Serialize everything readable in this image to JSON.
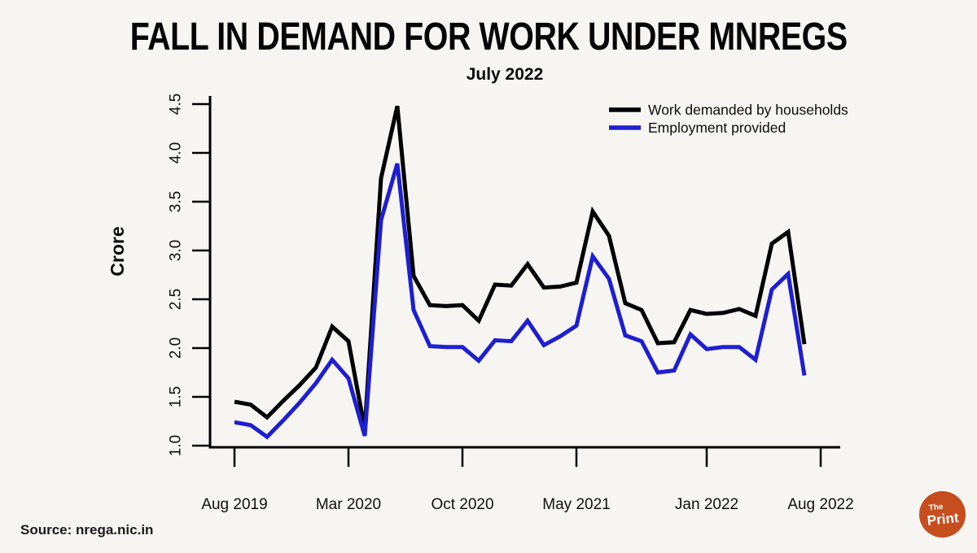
{
  "header": {
    "title": "FALL IN DEMAND FOR WORK UNDER MNREGS",
    "subtitle": "July 2022"
  },
  "source": {
    "label": "Source: nrega.nic.in"
  },
  "logo": {
    "line1": "The",
    "line2": "Print",
    "color": "#c64d1e"
  },
  "colors": {
    "background": "#f6f5f2",
    "axis": "#000000",
    "demand_line": "#000000",
    "provided_line": "#1e1ed2"
  },
  "chart_data": {
    "type": "line",
    "title": "July 2022",
    "xlabel": "",
    "ylabel": "Crore",
    "ylim": [
      1.0,
      4.5
    ],
    "yticks": [
      1.0,
      1.5,
      2.0,
      2.5,
      3.0,
      3.5,
      4.0,
      4.5
    ],
    "grid": false,
    "legend_position": "top-right",
    "x_tick_labels": [
      "Aug 2019",
      "Mar 2020",
      "Oct 2020",
      "May 2021",
      "Jan 2022",
      "Aug 2022"
    ],
    "x_tick_indices": [
      0,
      7,
      14,
      21,
      29,
      36
    ],
    "x": [
      "Aug 2019",
      "Sep 2019",
      "Oct 2019",
      "Nov 2019",
      "Dec 2019",
      "Jan 2020",
      "Feb 2020",
      "Mar 2020",
      "Apr 2020",
      "May 2020",
      "Jun 2020",
      "Jul 2020",
      "Aug 2020",
      "Sep 2020",
      "Oct 2020",
      "Nov 2020",
      "Dec 2020",
      "Jan 2021",
      "Feb 2021",
      "Mar 2021",
      "Apr 2021",
      "May 2021",
      "Jun 2021",
      "Jul 2021",
      "Aug 2021",
      "Sep 2021",
      "Oct 2021",
      "Nov 2021",
      "Dec 2021",
      "Jan 2022",
      "Feb 2022",
      "Mar 2022",
      "Apr 2022",
      "May 2022",
      "Jun 2022",
      "Jul 2022"
    ],
    "series": [
      {
        "name": "Work demanded by households",
        "color": "#000000",
        "values": [
          1.45,
          1.42,
          1.29,
          1.46,
          1.62,
          1.8,
          2.22,
          2.07,
          1.17,
          3.74,
          4.48,
          2.74,
          2.44,
          2.43,
          2.44,
          2.28,
          2.65,
          2.64,
          2.86,
          2.62,
          2.63,
          2.67,
          3.4,
          3.15,
          2.46,
          2.39,
          2.05,
          2.06,
          2.39,
          2.35,
          2.36,
          2.4,
          2.33,
          3.07,
          3.19,
          2.04
        ]
      },
      {
        "name": "Employment provided",
        "color": "#1e1ed2",
        "values": [
          1.24,
          1.21,
          1.09,
          1.26,
          1.44,
          1.64,
          1.88,
          1.69,
          1.1,
          3.31,
          3.89,
          2.39,
          2.02,
          2.01,
          2.01,
          1.87,
          2.08,
          2.07,
          2.28,
          2.03,
          2.12,
          2.23,
          2.94,
          2.71,
          2.13,
          2.07,
          1.75,
          1.77,
          2.14,
          1.99,
          2.01,
          2.01,
          1.88,
          2.6,
          2.76,
          1.72
        ]
      }
    ]
  }
}
